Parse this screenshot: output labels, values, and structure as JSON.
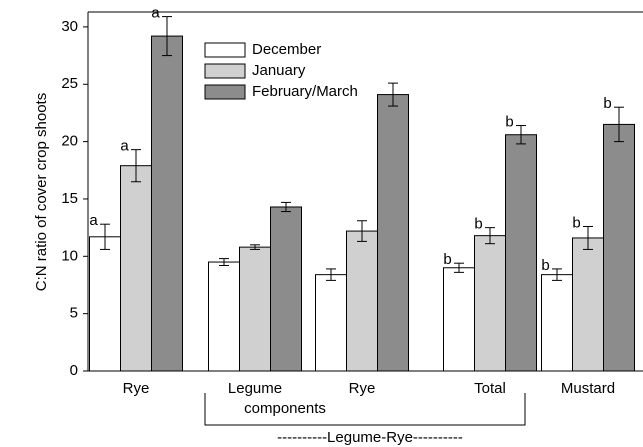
{
  "chart_data": {
    "type": "bar",
    "y_label": "C:N ratio of cover crop shoots",
    "categories": [
      "Rye",
      "Legume",
      "Rye",
      "Total",
      "Mustard"
    ],
    "bracket_label": "components",
    "group_label": "----------Legume-Rye----------",
    "series": [
      {
        "name": "December",
        "color": "#ffffff",
        "values": [
          11.7,
          9.5,
          8.4,
          9.0,
          8.4
        ],
        "errors": [
          1.1,
          0.3,
          0.5,
          0.4,
          0.5
        ],
        "letters": [
          "a",
          null,
          null,
          "b",
          "b"
        ]
      },
      {
        "name": "January",
        "color": "#d0d0d0",
        "values": [
          17.9,
          10.8,
          12.2,
          11.8,
          11.6
        ],
        "errors": [
          1.4,
          0.2,
          0.9,
          0.7,
          1.0
        ],
        "letters": [
          "a",
          null,
          null,
          "b",
          "b"
        ]
      },
      {
        "name": "February/March",
        "color": "#8c8c8c",
        "values": [
          29.2,
          14.3,
          24.1,
          20.6,
          21.5
        ],
        "errors": [
          1.7,
          0.4,
          1.0,
          0.8,
          1.5
        ],
        "letters": [
          "a",
          null,
          null,
          "b",
          "b"
        ]
      }
    ],
    "ylim": [
      0,
      31.3
    ],
    "yticks": [
      0,
      5,
      10,
      15,
      20,
      25,
      30
    ],
    "legend": "top-left"
  }
}
